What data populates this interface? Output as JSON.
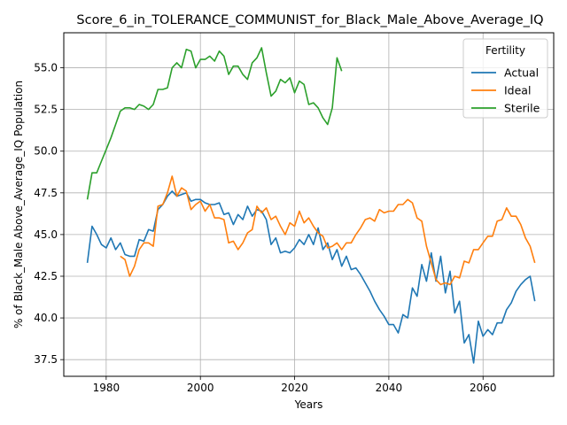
{
  "chart_data": {
    "type": "line",
    "title": "Score_6_in_TOLERANCE_COMMUNIST_for_Black_Male_Above_Average_IQ",
    "xlabel": "Years",
    "ylabel": "% of Black_Male Above_Average_IQ Population",
    "xlim": [
      1971,
      2075
    ],
    "ylim": [
      36.5,
      57.1
    ],
    "xticks": [
      1980,
      2000,
      2020,
      2040,
      2060
    ],
    "yticks": [
      37.5,
      40.0,
      42.5,
      45.0,
      47.5,
      50.0,
      52.5,
      55.0
    ],
    "grid": true,
    "legend": {
      "title": "Fertility",
      "placement": "top-right"
    },
    "series": [
      {
        "name": "Actual",
        "color": "#1f77b4",
        "points": [
          [
            1976,
            43.3
          ],
          [
            1977,
            45.5
          ],
          [
            1978,
            45.0
          ],
          [
            1979,
            44.4
          ],
          [
            1980,
            44.2
          ],
          [
            1981,
            44.8
          ],
          [
            1982,
            44.1
          ],
          [
            1983,
            44.5
          ],
          [
            1984,
            43.8
          ],
          [
            1985,
            43.7
          ],
          [
            1986,
            43.7
          ],
          [
            1987,
            44.7
          ],
          [
            1988,
            44.6
          ],
          [
            1989,
            45.3
          ],
          [
            1990,
            45.2
          ],
          [
            1991,
            46.5
          ],
          [
            1992,
            46.8
          ],
          [
            1993,
            47.3
          ],
          [
            1994,
            47.6
          ],
          [
            1995,
            47.3
          ],
          [
            1996,
            47.4
          ],
          [
            1997,
            47.5
          ],
          [
            1998,
            47.0
          ],
          [
            1999,
            47.1
          ],
          [
            2000,
            47.1
          ],
          [
            2001,
            46.9
          ],
          [
            2002,
            46.8
          ],
          [
            2003,
            46.8
          ],
          [
            2004,
            46.9
          ],
          [
            2005,
            46.2
          ],
          [
            2006,
            46.3
          ],
          [
            2007,
            45.6
          ],
          [
            2008,
            46.2
          ],
          [
            2009,
            45.9
          ],
          [
            2010,
            46.7
          ],
          [
            2011,
            46.1
          ],
          [
            2012,
            46.5
          ],
          [
            2013,
            46.4
          ],
          [
            2014,
            45.9
          ],
          [
            2015,
            44.4
          ],
          [
            2016,
            44.8
          ],
          [
            2017,
            43.9
          ],
          [
            2018,
            44.0
          ],
          [
            2019,
            43.9
          ],
          [
            2020,
            44.2
          ],
          [
            2021,
            44.7
          ],
          [
            2022,
            44.4
          ],
          [
            2023,
            45.0
          ],
          [
            2024,
            44.4
          ],
          [
            2025,
            45.4
          ],
          [
            2026,
            44.1
          ],
          [
            2027,
            44.5
          ],
          [
            2028,
            43.5
          ],
          [
            2029,
            44.1
          ],
          [
            2030,
            43.1
          ],
          [
            2031,
            43.7
          ],
          [
            2032,
            42.9
          ],
          [
            2033,
            43.0
          ],
          [
            2034,
            42.6
          ],
          [
            2035,
            42.1
          ],
          [
            2036,
            41.6
          ],
          [
            2037,
            41.0
          ],
          [
            2038,
            40.5
          ],
          [
            2039,
            40.1
          ],
          [
            2040,
            39.6
          ],
          [
            2041,
            39.6
          ],
          [
            2042,
            39.1
          ],
          [
            2043,
            40.2
          ],
          [
            2044,
            40.0
          ],
          [
            2045,
            41.8
          ],
          [
            2046,
            41.3
          ],
          [
            2047,
            43.2
          ],
          [
            2048,
            42.2
          ],
          [
            2049,
            43.9
          ],
          [
            2050,
            42.2
          ],
          [
            2051,
            43.7
          ],
          [
            2052,
            41.5
          ],
          [
            2053,
            42.8
          ],
          [
            2054,
            40.3
          ],
          [
            2055,
            41.0
          ],
          [
            2056,
            38.5
          ],
          [
            2057,
            39.0
          ],
          [
            2058,
            37.3
          ],
          [
            2059,
            39.8
          ],
          [
            2060,
            38.9
          ],
          [
            2061,
            39.3
          ],
          [
            2062,
            39.0
          ],
          [
            2063,
            39.7
          ],
          [
            2064,
            39.7
          ],
          [
            2065,
            40.5
          ],
          [
            2066,
            40.9
          ],
          [
            2067,
            41.6
          ],
          [
            2068,
            42.0
          ],
          [
            2069,
            42.3
          ],
          [
            2070,
            42.5
          ],
          [
            2071,
            41.0
          ]
        ]
      },
      {
        "name": "Ideal",
        "color": "#ff7f0e",
        "points": [
          [
            1983,
            43.7
          ],
          [
            1984,
            43.5
          ],
          [
            1985,
            42.5
          ],
          [
            1986,
            43.1
          ],
          [
            1987,
            44.1
          ],
          [
            1988,
            44.5
          ],
          [
            1989,
            44.5
          ],
          [
            1990,
            44.3
          ],
          [
            1991,
            46.7
          ],
          [
            1992,
            46.8
          ],
          [
            1993,
            47.5
          ],
          [
            1994,
            48.5
          ],
          [
            1995,
            47.3
          ],
          [
            1996,
            47.8
          ],
          [
            1997,
            47.6
          ],
          [
            1998,
            46.5
          ],
          [
            1999,
            46.8
          ],
          [
            2000,
            47.0
          ],
          [
            2001,
            46.4
          ],
          [
            2002,
            46.8
          ],
          [
            2003,
            46.0
          ],
          [
            2004,
            46.0
          ],
          [
            2005,
            45.9
          ],
          [
            2006,
            44.5
          ],
          [
            2007,
            44.6
          ],
          [
            2008,
            44.1
          ],
          [
            2009,
            44.5
          ],
          [
            2010,
            45.1
          ],
          [
            2011,
            45.3
          ],
          [
            2012,
            46.7
          ],
          [
            2013,
            46.3
          ],
          [
            2014,
            46.6
          ],
          [
            2015,
            45.9
          ],
          [
            2016,
            46.1
          ],
          [
            2017,
            45.5
          ],
          [
            2018,
            45.0
          ],
          [
            2019,
            45.7
          ],
          [
            2020,
            45.5
          ],
          [
            2021,
            46.4
          ],
          [
            2022,
            45.7
          ],
          [
            2023,
            46.0
          ],
          [
            2024,
            45.5
          ],
          [
            2025,
            45.1
          ],
          [
            2026,
            44.9
          ],
          [
            2027,
            44.2
          ],
          [
            2028,
            44.3
          ],
          [
            2029,
            44.5
          ],
          [
            2030,
            44.1
          ],
          [
            2031,
            44.5
          ],
          [
            2032,
            44.5
          ],
          [
            2033,
            45.0
          ],
          [
            2034,
            45.4
          ],
          [
            2035,
            45.9
          ],
          [
            2036,
            46.0
          ],
          [
            2037,
            45.8
          ],
          [
            2038,
            46.5
          ],
          [
            2039,
            46.3
          ],
          [
            2040,
            46.4
          ],
          [
            2041,
            46.4
          ],
          [
            2042,
            46.8
          ],
          [
            2043,
            46.8
          ],
          [
            2044,
            47.1
          ],
          [
            2045,
            46.9
          ],
          [
            2046,
            46.0
          ],
          [
            2047,
            45.8
          ],
          [
            2048,
            44.3
          ],
          [
            2049,
            43.3
          ],
          [
            2050,
            42.3
          ],
          [
            2051,
            42.0
          ],
          [
            2052,
            42.1
          ],
          [
            2053,
            42.0
          ],
          [
            2054,
            42.5
          ],
          [
            2055,
            42.4
          ],
          [
            2056,
            43.4
          ],
          [
            2057,
            43.3
          ],
          [
            2058,
            44.1
          ],
          [
            2059,
            44.1
          ],
          [
            2060,
            44.5
          ],
          [
            2061,
            44.9
          ],
          [
            2062,
            44.9
          ],
          [
            2063,
            45.8
          ],
          [
            2064,
            45.9
          ],
          [
            2065,
            46.6
          ],
          [
            2066,
            46.1
          ],
          [
            2067,
            46.1
          ],
          [
            2068,
            45.6
          ],
          [
            2069,
            44.8
          ],
          [
            2070,
            44.3
          ],
          [
            2071,
            43.3
          ]
        ]
      },
      {
        "name": "Sterile",
        "color": "#2ca02c",
        "points": [
          [
            1976,
            47.1
          ],
          [
            1977,
            48.7
          ],
          [
            1978,
            48.7
          ],
          [
            1979,
            49.4
          ],
          [
            1980,
            50.1
          ],
          [
            1981,
            50.8
          ],
          [
            1982,
            51.6
          ],
          [
            1983,
            52.4
          ],
          [
            1984,
            52.6
          ],
          [
            1985,
            52.6
          ],
          [
            1986,
            52.5
          ],
          [
            1987,
            52.8
          ],
          [
            1988,
            52.7
          ],
          [
            1989,
            52.5
          ],
          [
            1990,
            52.8
          ],
          [
            1991,
            53.7
          ],
          [
            1992,
            53.7
          ],
          [
            1993,
            53.8
          ],
          [
            1994,
            55.0
          ],
          [
            1995,
            55.3
          ],
          [
            1996,
            55.0
          ],
          [
            1997,
            56.1
          ],
          [
            1998,
            56.0
          ],
          [
            1999,
            55.0
          ],
          [
            2000,
            55.5
          ],
          [
            2001,
            55.5
          ],
          [
            2002,
            55.7
          ],
          [
            2003,
            55.4
          ],
          [
            2004,
            56.0
          ],
          [
            2005,
            55.7
          ],
          [
            2006,
            54.6
          ],
          [
            2007,
            55.1
          ],
          [
            2008,
            55.1
          ],
          [
            2009,
            54.6
          ],
          [
            2010,
            54.3
          ],
          [
            2011,
            55.3
          ],
          [
            2012,
            55.6
          ],
          [
            2013,
            56.2
          ],
          [
            2014,
            54.7
          ],
          [
            2015,
            53.3
          ],
          [
            2016,
            53.6
          ],
          [
            2017,
            54.3
          ],
          [
            2018,
            54.1
          ],
          [
            2019,
            54.4
          ],
          [
            2020,
            53.5
          ],
          [
            2021,
            54.2
          ],
          [
            2022,
            54.0
          ],
          [
            2023,
            52.8
          ],
          [
            2024,
            52.9
          ],
          [
            2025,
            52.6
          ],
          [
            2026,
            52.0
          ],
          [
            2027,
            51.6
          ],
          [
            2028,
            52.6
          ],
          [
            2029,
            55.6
          ],
          [
            2030,
            54.8
          ]
        ]
      }
    ]
  }
}
